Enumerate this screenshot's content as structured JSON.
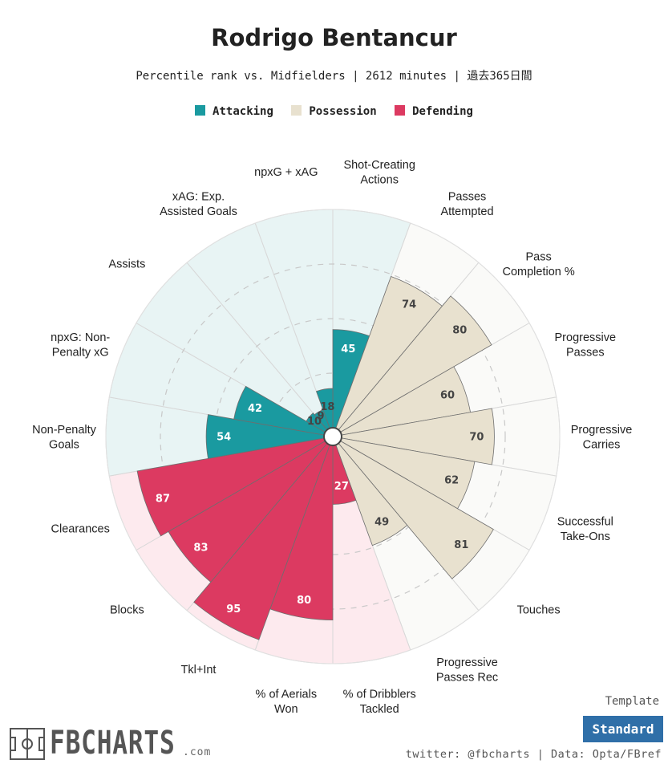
{
  "header": {
    "title": "Rodrigo Bentancur",
    "subtitle": "Percentile rank vs. Midfielders | 2612 minutes | 過去365日間"
  },
  "legend": [
    {
      "label": "Attacking",
      "color": "#1a9aa0"
    },
    {
      "label": "Possession",
      "color": "#e8e1cf"
    },
    {
      "label": "Defending",
      "color": "#dc3a61"
    }
  ],
  "chart_data": {
    "type": "polar-bar",
    "title": "Rodrigo Bentancur",
    "subtitle": "Percentile rank vs. Midfielders | 2612 minutes | 過去365日間",
    "ylim": [
      0,
      100
    ],
    "gridlines": [
      25,
      50,
      75
    ],
    "start": "top, clockwise",
    "categories": [
      "Shot-Creating Actions",
      "Passes Attempted",
      "Pass Completion %",
      "Progressive Passes",
      "Progressive Carries",
      "Successful Take-Ons",
      "Touches",
      "Progressive Passes Rec",
      "% of Dribblers Tackled",
      "% of Aerials Won",
      "Tkl+Int",
      "Blocks",
      "Clearances",
      "Non-Penalty Goals",
      "npxG: Non-Penalty xG",
      "Assists",
      "xAG: Exp. Assisted Goals",
      "npxG + xAG"
    ],
    "label_lines": [
      [
        "Shot-Creating",
        "Actions"
      ],
      [
        "Passes",
        "Attempted"
      ],
      [
        "Pass",
        "Completion %"
      ],
      [
        "Progressive",
        "Passes"
      ],
      [
        "Progressive",
        "Carries"
      ],
      [
        "Successful",
        "Take-Ons"
      ],
      [
        "Touches"
      ],
      [
        "Progressive",
        "Passes Rec"
      ],
      [
        "% of Dribblers",
        "Tackled"
      ],
      [
        "% of Aerials",
        "Won"
      ],
      [
        "Tkl+Int"
      ],
      [
        "Blocks"
      ],
      [
        "Clearances"
      ],
      [
        "Non-Penalty",
        "Goals"
      ],
      [
        "npxG: Non-",
        "Penalty xG"
      ],
      [
        "Assists"
      ],
      [
        "xAG: Exp.",
        "Assisted Goals"
      ],
      [
        "npxG + xAG"
      ]
    ],
    "groups": [
      "Attacking",
      "Possession",
      "Possession",
      "Possession",
      "Possession",
      "Possession",
      "Possession",
      "Possession",
      "Defending",
      "Defending",
      "Defending",
      "Defending",
      "Defending",
      "Attacking",
      "Attacking",
      "Attacking",
      "Attacking",
      "Attacking"
    ],
    "values": [
      45,
      74,
      80,
      60,
      70,
      62,
      81,
      49,
      27,
      80,
      95,
      83,
      87,
      54,
      42,
      10,
      9,
      18
    ],
    "colors": {
      "Attacking": {
        "bar": "#1a9aa0",
        "bg": "#e8f4f4",
        "text": "#ffffff"
      },
      "Possession": {
        "bar": "#e8e1cf",
        "bg": "#fafaf8",
        "text": "#444444"
      },
      "Defending": {
        "bar": "#dc3a61",
        "bg": "#fdeaee",
        "text": "#ffffff"
      }
    },
    "small_value_text_color": "#444444"
  },
  "footer": {
    "logo_text": "FBCHARTS",
    "logo_suffix": ".com",
    "template_label": "Template",
    "template_button": "Standard",
    "credits": "twitter: @fbcharts | Data: Opta/FBref"
  }
}
